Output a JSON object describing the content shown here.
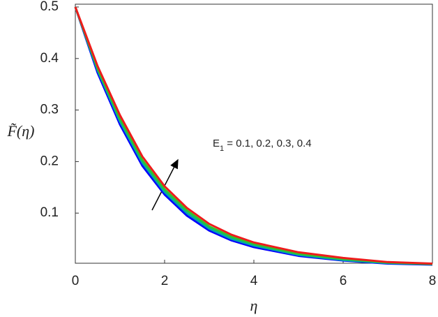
{
  "chart_data": {
    "type": "line",
    "x_label": "η",
    "y_label": "F̃(η)",
    "annotation": {
      "text": "E",
      "subscript": "1",
      "rest": " = 0.1, 0.2, 0.3,  0.4"
    },
    "x": [
      0,
      0.5,
      1,
      1.5,
      2,
      2.5,
      3,
      3.5,
      4,
      5,
      6,
      7,
      8
    ],
    "series": [
      {
        "color": "#0000ff",
        "values": [
          0.5,
          0.372,
          0.272,
          0.192,
          0.136,
          0.095,
          0.066,
          0.047,
          0.034,
          0.017,
          0.008,
          0.002,
          0.0
        ]
      },
      {
        "color": "#00a8a8",
        "values": [
          0.5,
          0.377,
          0.278,
          0.198,
          0.141,
          0.1,
          0.07,
          0.05,
          0.037,
          0.019,
          0.009,
          0.003,
          0.001
        ]
      },
      {
        "color": "#2ec42e",
        "values": [
          0.5,
          0.38,
          0.283,
          0.203,
          0.146,
          0.105,
          0.074,
          0.054,
          0.04,
          0.021,
          0.011,
          0.004,
          0.001
        ]
      },
      {
        "color": "#ee1c1c",
        "values": [
          0.5,
          0.385,
          0.29,
          0.21,
          0.152,
          0.11,
          0.079,
          0.058,
          0.043,
          0.024,
          0.013,
          0.005,
          0.002
        ]
      }
    ],
    "xlim": [
      0,
      8
    ],
    "ylim": [
      0,
      0.5
    ],
    "xticks": [
      0,
      2,
      4,
      6,
      8
    ],
    "yticks": [
      0.1,
      0.2,
      0.3,
      0.4,
      0.5
    ]
  }
}
